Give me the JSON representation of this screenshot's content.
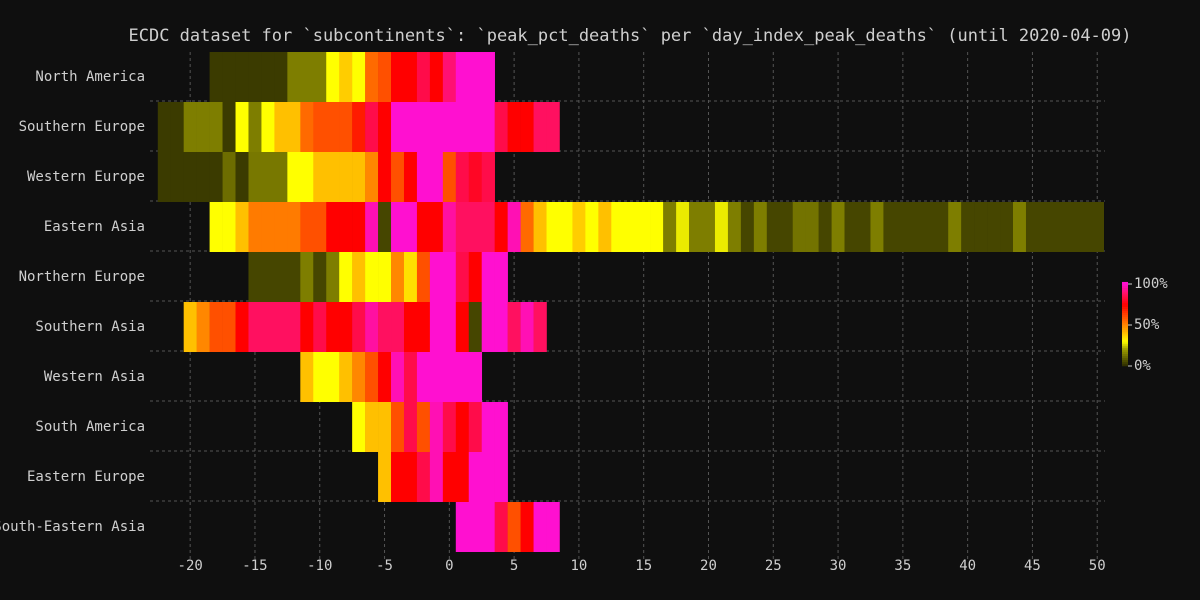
{
  "chart_data": {
    "type": "heatmap",
    "title": "ECDC dataset for `subcontinents`: `peak_pct_deaths` per `day_index_peak_deaths` (until 2020-04-09)",
    "xlim": [
      -23.1,
      50.6
    ],
    "xticks": [
      -20,
      -15,
      -10,
      -5,
      0,
      5,
      10,
      15,
      20,
      25,
      30,
      35,
      40,
      45,
      50
    ],
    "grid": true,
    "colorscale": [
      [
        0,
        "#2a2a00"
      ],
      [
        20,
        "#9a9a00"
      ],
      [
        30,
        "#ffff00"
      ],
      [
        40,
        "#ffc000"
      ],
      [
        55,
        "#ff6a00"
      ],
      [
        75,
        "#ff0000"
      ],
      [
        88,
        "#ff1060"
      ],
      [
        100,
        "#ff10d0"
      ]
    ],
    "colorbar_ticks": [
      {
        "value": 100,
        "label": "100%"
      },
      {
        "value": 50,
        "label": "50%"
      },
      {
        "value": 0,
        "label": "0%"
      }
    ],
    "series": [
      {
        "name": "North America",
        "x": [
          -18,
          -17,
          -16,
          -15,
          -14,
          -13,
          -12,
          -11,
          -10,
          -9,
          -8,
          -7,
          -6,
          -5,
          -4,
          -3,
          -2,
          -1,
          0,
          1,
          2,
          3
        ],
        "values": [
          3,
          3,
          3,
          3,
          3,
          3,
          15,
          15,
          15,
          30,
          38,
          30,
          55,
          60,
          75,
          75,
          85,
          75,
          90,
          100,
          100,
          100
        ]
      },
      {
        "name": "Southern Europe",
        "x": [
          -22,
          -21,
          -20,
          -19,
          -18,
          -17,
          -16,
          -15,
          -14,
          -13,
          -12,
          -11,
          -10,
          -9,
          -8,
          -7,
          -6,
          -5,
          -4,
          -3,
          -2,
          -1,
          0,
          1,
          2,
          3,
          4,
          5,
          6,
          7,
          8
        ],
        "values": [
          3,
          3,
          15,
          15,
          15,
          3,
          30,
          15,
          30,
          40,
          40,
          55,
          60,
          60,
          60,
          70,
          85,
          75,
          100,
          100,
          100,
          100,
          100,
          100,
          100,
          100,
          85,
          75,
          75,
          88,
          88
        ]
      },
      {
        "name": "Western Europe",
        "x": [
          -22,
          -21,
          -20,
          -19,
          -18,
          -17,
          -16,
          -15,
          -14,
          -13,
          -12,
          -11,
          -10,
          -9,
          -8,
          -7,
          -6,
          -5,
          -4,
          -3,
          -2,
          -1,
          0,
          1,
          2,
          3
        ],
        "values": [
          3,
          3,
          3,
          3,
          3,
          12,
          3,
          14,
          14,
          14,
          30,
          30,
          40,
          40,
          40,
          40,
          50,
          75,
          60,
          75,
          100,
          100,
          60,
          85,
          80,
          85
        ]
      },
      {
        "name": "Eastern Asia",
        "x": [
          -18,
          -17,
          -16,
          -15,
          -14,
          -13,
          -12,
          -11,
          -10,
          -9,
          -8,
          -7,
          -6,
          -5,
          -4,
          -3,
          -2,
          -1,
          0,
          1,
          2,
          3,
          4,
          5,
          6,
          7,
          8,
          9,
          10,
          11,
          12,
          13,
          14,
          15,
          16,
          17,
          18,
          19,
          20,
          21,
          22,
          23,
          24,
          25,
          26,
          27,
          28,
          29,
          30,
          31,
          32,
          33,
          34,
          35,
          36,
          37,
          38,
          39,
          40,
          41,
          42,
          43,
          44,
          45,
          46,
          47,
          48,
          49,
          50
        ],
        "values": [
          30,
          30,
          40,
          52,
          52,
          52,
          52,
          60,
          60,
          75,
          75,
          75,
          97,
          5,
          100,
          100,
          75,
          75,
          95,
          88,
          88,
          88,
          75,
          97,
          55,
          40,
          30,
          30,
          38,
          30,
          40,
          30,
          30,
          30,
          30,
          15,
          28,
          15,
          15,
          28,
          15,
          5,
          15,
          5,
          5,
          13,
          13,
          5,
          15,
          5,
          5,
          15,
          5,
          5,
          5,
          5,
          5,
          15,
          5,
          5,
          5,
          5,
          15,
          5,
          5,
          5,
          5,
          5,
          5
        ]
      },
      {
        "name": "Northern Europe",
        "x": [
          -15,
          -14,
          -13,
          -12,
          -11,
          -10,
          -9,
          -8,
          -7,
          -6,
          -5,
          -4,
          -3,
          -2,
          -1,
          0,
          1,
          2,
          3,
          4
        ],
        "values": [
          5,
          5,
          5,
          5,
          15,
          5,
          15,
          30,
          40,
          30,
          30,
          50,
          35,
          60,
          100,
          100,
          85,
          75,
          100,
          100
        ]
      },
      {
        "name": "Southern Asia",
        "x": [
          -20,
          -19,
          -18,
          -17,
          -16,
          -15,
          -14,
          -13,
          -12,
          -11,
          -10,
          -9,
          -8,
          -7,
          -6,
          -5,
          -4,
          -3,
          -2,
          -1,
          0,
          1,
          2,
          3,
          4,
          5,
          6,
          7
        ],
        "values": [
          40,
          50,
          60,
          60,
          75,
          88,
          88,
          88,
          88,
          75,
          85,
          75,
          75,
          85,
          95,
          88,
          88,
          75,
          75,
          100,
          100,
          75,
          5,
          100,
          100,
          88,
          97,
          88
        ]
      },
      {
        "name": "Western Asia",
        "x": [
          -11,
          -10,
          -9,
          -8,
          -7,
          -6,
          -5,
          -4,
          -3,
          -2,
          -1,
          0,
          1,
          2
        ],
        "values": [
          40,
          30,
          30,
          40,
          50,
          60,
          75,
          97,
          85,
          100,
          100,
          100,
          100,
          100
        ]
      },
      {
        "name": "South America",
        "x": [
          -7,
          -6,
          -5,
          -4,
          -3,
          -2,
          -1,
          0,
          1,
          2,
          3,
          4
        ],
        "values": [
          30,
          40,
          40,
          60,
          85,
          60,
          97,
          85,
          75,
          85,
          100,
          100
        ]
      },
      {
        "name": "Eastern Europe",
        "x": [
          -5,
          -4,
          -3,
          -2,
          -1,
          0,
          1,
          2,
          3,
          4
        ],
        "values": [
          40,
          75,
          75,
          85,
          97,
          75,
          75,
          100,
          100,
          100
        ]
      },
      {
        "name": "South-Eastern Asia",
        "x": [
          1,
          2,
          3,
          4,
          5,
          6,
          7,
          8
        ],
        "values": [
          100,
          100,
          100,
          85,
          60,
          75,
          100,
          100
        ]
      }
    ]
  }
}
